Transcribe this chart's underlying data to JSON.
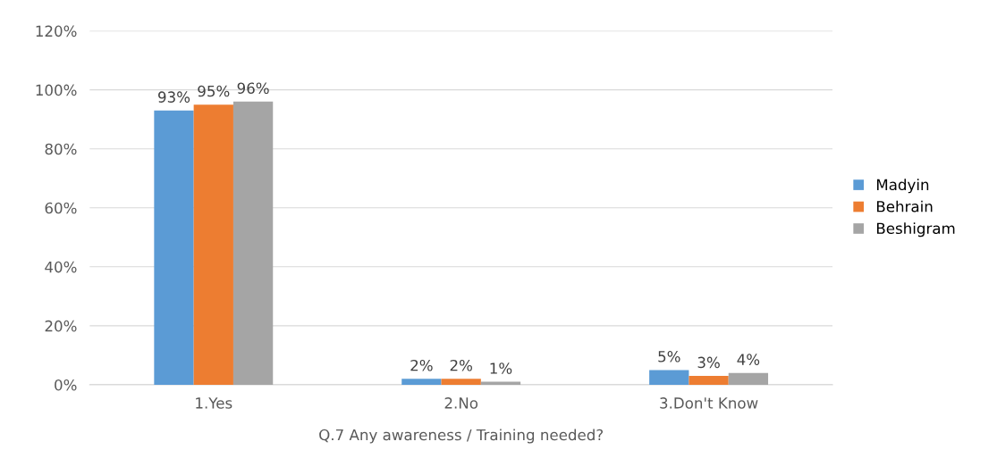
{
  "chart_data": {
    "type": "bar",
    "xlabel": "Q.7 Any awareness / Training needed?",
    "categories": [
      "1.Yes",
      "2.No",
      "3.Don't Know"
    ],
    "series": [
      {
        "name": "Madyin",
        "color": "#5b9bd5",
        "values": [
          93,
          2,
          5
        ],
        "value_labels": [
          "93%",
          "2%",
          "5%"
        ]
      },
      {
        "name": "Behrain",
        "color": "#ed7d31",
        "values": [
          95,
          2,
          3
        ],
        "value_labels": [
          "95%",
          "2%",
          "3%"
        ]
      },
      {
        "name": "Beshigram",
        "color": "#a5a5a5",
        "values": [
          96,
          1,
          4
        ],
        "value_labels": [
          "96%",
          "1%",
          "4%"
        ]
      }
    ],
    "ylim": [
      0,
      120
    ],
    "yticks": [
      {
        "value": 0,
        "label": "0%"
      },
      {
        "value": 20,
        "label": "20%"
      },
      {
        "value": 40,
        "label": "40%"
      },
      {
        "value": 60,
        "label": "60%"
      },
      {
        "value": 80,
        "label": "80%"
      },
      {
        "value": 100,
        "label": "100%"
      },
      {
        "value": 120,
        "label": "120%"
      }
    ],
    "grid": "y",
    "legend": "right"
  }
}
